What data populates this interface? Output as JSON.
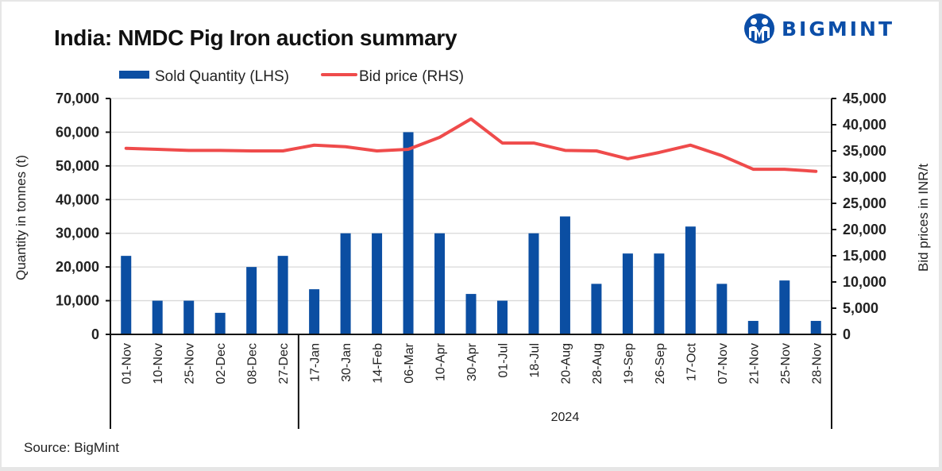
{
  "header": {
    "title": "India: NMDC Pig Iron auction summary",
    "logo_text": "BIGMINT",
    "logo_icon": "bigmint-people-icon"
  },
  "footer": {
    "source": "Source: BigMint"
  },
  "colors": {
    "bar": "#0b4ea2",
    "line": "#ef4b4b",
    "brand": "#0b4ea8",
    "grid": "#d9d9d9"
  },
  "chart_data": {
    "type": "bar+line",
    "title": "India: NMDC Pig Iron auction summary",
    "categories": [
      "01-Nov",
      "10-Nov",
      "25-Nov",
      "02-Dec",
      "08-Dec",
      "27-Dec",
      "17-Jan",
      "30-Jan",
      "14-Feb",
      "06-Mar",
      "10-Apr",
      "30-Apr",
      "01-Jul",
      "18-Jul",
      "20-Aug",
      "28-Aug",
      "19-Sep",
      "26-Sep",
      "17-Oct",
      "07-Nov",
      "21-Nov",
      "25-Nov",
      "28-Nov"
    ],
    "category_groups": [
      {
        "label": "",
        "count": 6
      },
      {
        "label": "2024",
        "count": 17
      }
    ],
    "series": [
      {
        "name": "Sold Quantity (LHS)",
        "type": "bar",
        "axis": "left",
        "values": [
          23300,
          10000,
          10000,
          6400,
          20000,
          23300,
          13400,
          30000,
          30000,
          60000,
          30000,
          12000,
          10000,
          30000,
          35000,
          15000,
          24000,
          24000,
          32000,
          15000,
          4000,
          16000,
          4000
        ]
      },
      {
        "name": "Bid price (RHS)",
        "type": "line",
        "axis": "right",
        "values": [
          35500,
          35300,
          35100,
          35100,
          35000,
          35000,
          36100,
          35800,
          35000,
          35300,
          37600,
          41100,
          36500,
          36500,
          35100,
          35000,
          33500,
          34700,
          36100,
          34100,
          31500,
          31500,
          31100
        ]
      }
    ],
    "ylabel": "Quantity in tonnes (t)",
    "y2label": "Bid prices in INR/t",
    "ylim": [
      0,
      70000
    ],
    "y2lim": [
      0,
      45000
    ],
    "yticks": [
      "0",
      "10,000",
      "20,000",
      "30,000",
      "40,000",
      "50,000",
      "60,000",
      "70,000"
    ],
    "y2ticks": [
      "0",
      "5,000",
      "10,000",
      "15,000",
      "20,000",
      "25,000",
      "30,000",
      "35,000",
      "40,000",
      "45,000"
    ],
    "grid": true,
    "legend": "top-center"
  }
}
